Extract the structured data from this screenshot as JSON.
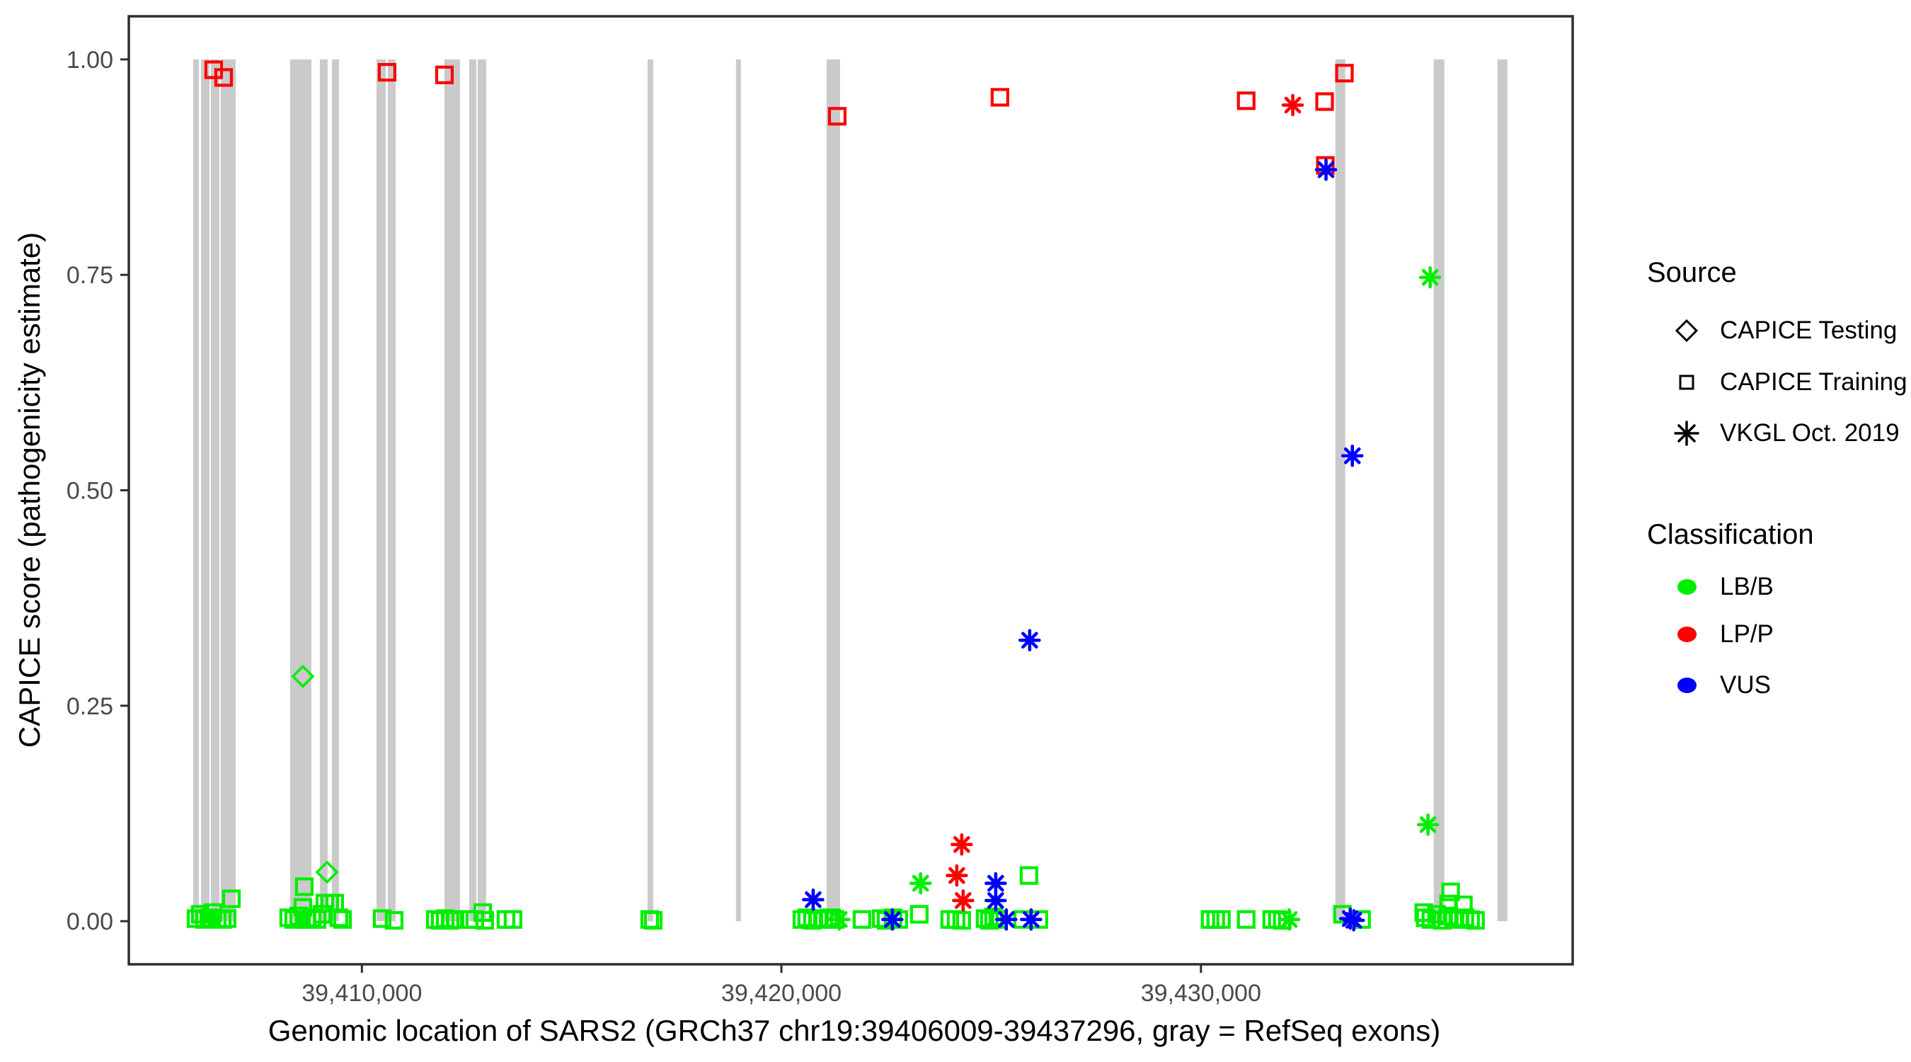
{
  "figure": {
    "x_axis": {
      "title": "Genomic location of SARS2 (GRCh37 chr19:39406009-39437296, gray = RefSeq exons)",
      "ticks": [
        {
          "value": 39410000,
          "label": "39,410,000"
        },
        {
          "value": 39420000,
          "label": "39,420,000"
        },
        {
          "value": 39430000,
          "label": "39,430,000"
        }
      ]
    },
    "y_axis": {
      "title": "CAPICE score (pathogenicity estimate)",
      "ticks": [
        {
          "value": 0.0,
          "label": "0.00"
        },
        {
          "value": 0.25,
          "label": "0.25"
        },
        {
          "value": 0.5,
          "label": "0.50"
        },
        {
          "value": 0.75,
          "label": "0.75"
        },
        {
          "value": 1.0,
          "label": "1.00"
        }
      ]
    },
    "legend": {
      "source": {
        "title": "Source",
        "items": [
          {
            "label": "CAPICE Testing",
            "marker": "diamond"
          },
          {
            "label": "CAPICE Training",
            "marker": "square"
          },
          {
            "label": "VKGL Oct. 2019",
            "marker": "asterisk"
          }
        ]
      },
      "classification": {
        "title": "Classification",
        "items": [
          {
            "label": "LB/B",
            "color": "#00EE00"
          },
          {
            "label": "LP/P",
            "color": "#FF0000"
          },
          {
            "label": "VUS",
            "color": "#0000FF"
          }
        ]
      }
    }
  },
  "chart_data": {
    "type": "scatter",
    "title": "",
    "xlabel": "Genomic location of SARS2 (GRCh37 chr19:39406009-39437296, gray = RefSeq exons)",
    "ylabel": "CAPICE score (pathogenicity estimate)",
    "x_domain": [
      39404445,
      39438860
    ],
    "y_domain": [
      -0.05,
      1.05
    ],
    "gene_range": "chr19:39406009-39437296",
    "grid": false,
    "exon_color": "#CACACA",
    "border_color": "#2E2E2E",
    "tick_label_color": "#4A4A4A",
    "colors": {
      "LB/B": "#00EE00",
      "LP/P": "#FF0000",
      "VUS": "#0000FF"
    },
    "exons": [
      [
        39405979,
        39406114
      ],
      [
        39406165,
        39406367
      ],
      [
        39406401,
        39406603
      ],
      [
        39406637,
        39406991
      ],
      [
        39408290,
        39408796
      ],
      [
        39408999,
        39409184
      ],
      [
        39409285,
        39409454
      ],
      [
        39410348,
        39410567
      ],
      [
        39410617,
        39410803
      ],
      [
        39411967,
        39412338
      ],
      [
        39412557,
        39412726
      ],
      [
        39412760,
        39412962
      ],
      [
        39416809,
        39416944
      ],
      [
        39418917,
        39419035
      ],
      [
        39421076,
        39421397
      ],
      [
        39433204,
        39433440
      ],
      [
        39435549,
        39435802
      ],
      [
        39437067,
        39437303
      ]
    ],
    "series": [
      {
        "source": "CAPICE Testing",
        "classification": "LB/B",
        "marker": "diamond",
        "color": "#00EE00",
        "points": [
          [
            39408594,
            0.284
          ],
          [
            39409168,
            0.057
          ]
        ]
      },
      {
        "source": "CAPICE Training",
        "classification": "LP/P",
        "marker": "square",
        "color": "#FF0000",
        "points": [
          [
            39406468,
            0.988
          ],
          [
            39406704,
            0.979
          ],
          [
            39410601,
            0.985
          ],
          [
            39411967,
            0.982
          ],
          [
            39421330,
            0.934
          ],
          [
            39425209,
            0.956
          ],
          [
            39431077,
            0.952
          ],
          [
            39432947,
            0.951
          ],
          [
            39433420,
            0.984
          ],
          [
            39432964,
            0.877
          ]
        ]
      },
      {
        "source": "CAPICE Training",
        "classification": "LB/B",
        "marker": "square",
        "color": "#00EE00",
        "points": [
          [
            39406047,
            0.003
          ],
          [
            39406148,
            0.008
          ],
          [
            39406249,
            0.002
          ],
          [
            39406350,
            0.004
          ],
          [
            39406451,
            0.01
          ],
          [
            39406553,
            0.003
          ],
          [
            39406671,
            0.002
          ],
          [
            39406789,
            0.003
          ],
          [
            39406890,
            0.026
          ],
          [
            39408256,
            0.004
          ],
          [
            39408374,
            0.002
          ],
          [
            39408492,
            0.006
          ],
          [
            39408594,
            0.016
          ],
          [
            39408627,
            0.04
          ],
          [
            39408695,
            0.002
          ],
          [
            39408813,
            0.004
          ],
          [
            39408931,
            0.002
          ],
          [
            39409049,
            0.008
          ],
          [
            39409117,
            0.021
          ],
          [
            39409235,
            0.021
          ],
          [
            39409353,
            0.021
          ],
          [
            39409454,
            0.004
          ],
          [
            39409538,
            0.002
          ],
          [
            39410483,
            0.003
          ],
          [
            39410769,
            0.001
          ],
          [
            39411748,
            0.002
          ],
          [
            39411866,
            0.001
          ],
          [
            39411984,
            0.003
          ],
          [
            39412102,
            0.001
          ],
          [
            39412220,
            0.002
          ],
          [
            39412557,
            0.002
          ],
          [
            39412692,
            0.002
          ],
          [
            39412878,
            0.01
          ],
          [
            39412928,
            0.001
          ],
          [
            39413434,
            0.002
          ],
          [
            39413603,
            0.002
          ],
          [
            39416859,
            0.002
          ],
          [
            39416944,
            0.001
          ],
          [
            39420486,
            0.002
          ],
          [
            39420604,
            0.004
          ],
          [
            39420739,
            0.001
          ],
          [
            39420874,
            0.003
          ],
          [
            39421009,
            0.002
          ],
          [
            39421144,
            0.004
          ],
          [
            39421279,
            0.002
          ],
          [
            39421920,
            0.002
          ],
          [
            39422376,
            0.003
          ],
          [
            39422494,
            0.001
          ],
          [
            39422662,
            0.004
          ],
          [
            39422797,
            0.002
          ],
          [
            39423286,
            0.008
          ],
          [
            39424011,
            0.002
          ],
          [
            39424163,
            0.002
          ],
          [
            39424298,
            0.001
          ],
          [
            39424854,
            0.003
          ],
          [
            39424956,
            0.001
          ],
          [
            39425057,
            0.005
          ],
          [
            39425158,
            0.002
          ],
          [
            39425748,
            0.002
          ],
          [
            39425900,
            0.053
          ],
          [
            39426136,
            0.002
          ],
          [
            39430218,
            0.002
          ],
          [
            39430353,
            0.002
          ],
          [
            39430488,
            0.002
          ],
          [
            39431078,
            0.002
          ],
          [
            39431685,
            0.002
          ],
          [
            39431820,
            0.002
          ],
          [
            39431938,
            0.001
          ],
          [
            39433372,
            0.008
          ],
          [
            39433827,
            0.002
          ],
          [
            39435311,
            0.01
          ],
          [
            39435345,
            0.004
          ],
          [
            39435480,
            0.002
          ],
          [
            39435615,
            0.008
          ],
          [
            39435750,
            0.001
          ],
          [
            39435885,
            0.006
          ],
          [
            39435902,
            0.02
          ],
          [
            39435952,
            0.034
          ],
          [
            39436020,
            0.003
          ],
          [
            39436155,
            0.002
          ],
          [
            39436256,
            0.019
          ],
          [
            39436290,
            0.004
          ],
          [
            39436425,
            0.002
          ],
          [
            39436543,
            0.001
          ]
        ]
      },
      {
        "source": "VKGL Oct. 2019",
        "classification": "LB/B",
        "marker": "asterisk",
        "color": "#00EE00",
        "points": [
          [
            39435462,
            0.747
          ],
          [
            39435412,
            0.112
          ],
          [
            39423318,
            0.044
          ],
          [
            39421380,
            0.002
          ],
          [
            39432104,
            0.002
          ]
        ]
      },
      {
        "source": "VKGL Oct. 2019",
        "classification": "LP/P",
        "marker": "asterisk",
        "color": "#FF0000",
        "points": [
          [
            39432188,
            0.947
          ],
          [
            39424298,
            0.089
          ],
          [
            39424180,
            0.053
          ],
          [
            39424331,
            0.024
          ]
        ]
      },
      {
        "source": "VKGL Oct. 2019",
        "classification": "VUS",
        "marker": "asterisk",
        "color": "#0000FF",
        "points": [
          [
            39433608,
            0.54
          ],
          [
            39425917,
            0.326
          ],
          [
            39432981,
            0.872
          ],
          [
            39420756,
            0.025
          ],
          [
            39425107,
            0.044
          ],
          [
            39425107,
            0.024
          ],
          [
            39422645,
            0.002
          ],
          [
            39425360,
            0.002
          ],
          [
            39425951,
            0.002
          ],
          [
            39433558,
            0.003
          ],
          [
            39433642,
            0.001
          ]
        ]
      }
    ],
    "legend_position": "right"
  }
}
